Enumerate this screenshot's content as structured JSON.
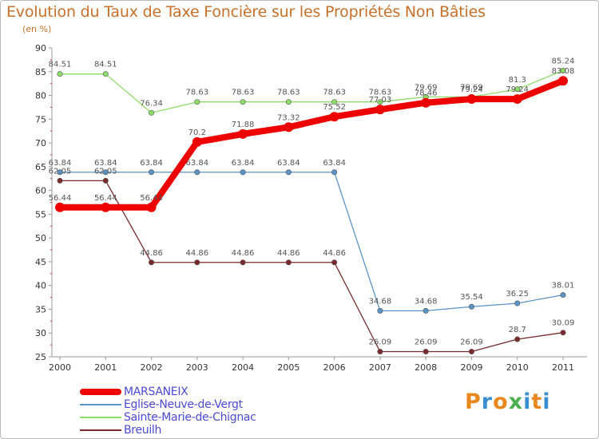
{
  "header": {
    "title": "Evolution du Taux de Taxe Foncière sur les Propriétés Non Bâties",
    "unit": "(en %)"
  },
  "logo": {
    "text": "Proxiti",
    "colors": [
      "#e8881e",
      "#3a8fd0",
      "#e8881e",
      "#4caf50",
      "#3a8fd0",
      "#e8881e",
      "#3a8fd0"
    ]
  },
  "chart_data": {
    "type": "line",
    "title": "Evolution du Taux de Taxe Foncière sur les Propriétés Non Bâties",
    "ylabel": "(en %)",
    "xlabel": "",
    "categories": [
      "2000",
      "2001",
      "2002",
      "2003",
      "2004",
      "2005",
      "2006",
      "2007",
      "2008",
      "2009",
      "2010",
      "2011"
    ],
    "ylim": [
      25,
      90
    ],
    "yticks": [
      25,
      30,
      35,
      40,
      45,
      50,
      55,
      60,
      65,
      70,
      75,
      80,
      85,
      90
    ],
    "grid": false,
    "legend_position": "bottom-left",
    "series": [
      {
        "name": "Sainte-Marie-de-Chignac",
        "color": "#8edc6a",
        "labels": [
          "84.51",
          "84.51",
          "76.34",
          "78.63",
          "78.63",
          "78.63",
          "78.63",
          "78.63",
          "79.69",
          "79.69",
          "81.3",
          "85.24"
        ],
        "values": [
          84.51,
          84.51,
          76.34,
          78.63,
          78.63,
          78.63,
          78.63,
          78.63,
          79.69,
          79.69,
          81.3,
          85.24
        ]
      },
      {
        "name": "Eglise-Neuve-de-Vergt",
        "color": "#5b94c8",
        "labels": [
          "63.84",
          "63.84",
          "63.84",
          "63.84",
          "63.84",
          "63.84",
          "63.84",
          "34.68",
          "34.68",
          "35.54",
          "36.25",
          "38.01"
        ],
        "values": [
          63.84,
          63.84,
          63.84,
          63.84,
          63.84,
          63.84,
          63.84,
          34.68,
          34.68,
          35.54,
          36.25,
          38.01
        ]
      },
      {
        "name": "Breuilh",
        "color": "#7a2a2a",
        "labels": [
          "62.05",
          "62.05",
          "44.86",
          "44.86",
          "44.86",
          "44.86",
          "44.86",
          "26.09",
          "26.09",
          "26.09",
          "28.7",
          "30.09"
        ],
        "values": [
          62.05,
          62.05,
          44.86,
          44.86,
          44.86,
          44.86,
          44.86,
          26.09,
          26.09,
          26.09,
          28.7,
          30.09
        ]
      },
      {
        "name": "MARSANEIX",
        "color": "#ee0000",
        "labels": [
          "56.44",
          "56.44",
          "56.44",
          "70.2",
          "71.88",
          "73.32",
          "75.52",
          "77.03",
          "78.46",
          "79.24",
          "79.24",
          "83.08"
        ],
        "values": [
          56.44,
          56.44,
          56.44,
          70.2,
          71.88,
          73.32,
          75.52,
          77.03,
          78.46,
          79.24,
          79.24,
          83.08
        ]
      }
    ]
  },
  "legend": [
    {
      "label": "MARSANEIX",
      "color": "#ee0000",
      "thick": true
    },
    {
      "label": "Eglise-Neuve-de-Vergt",
      "color": "#5b94c8",
      "thick": false
    },
    {
      "label": "Sainte-Marie-de-Chignac",
      "color": "#8edc6a",
      "thick": false
    },
    {
      "label": "Breuilh",
      "color": "#7a2a2a",
      "thick": false
    }
  ]
}
